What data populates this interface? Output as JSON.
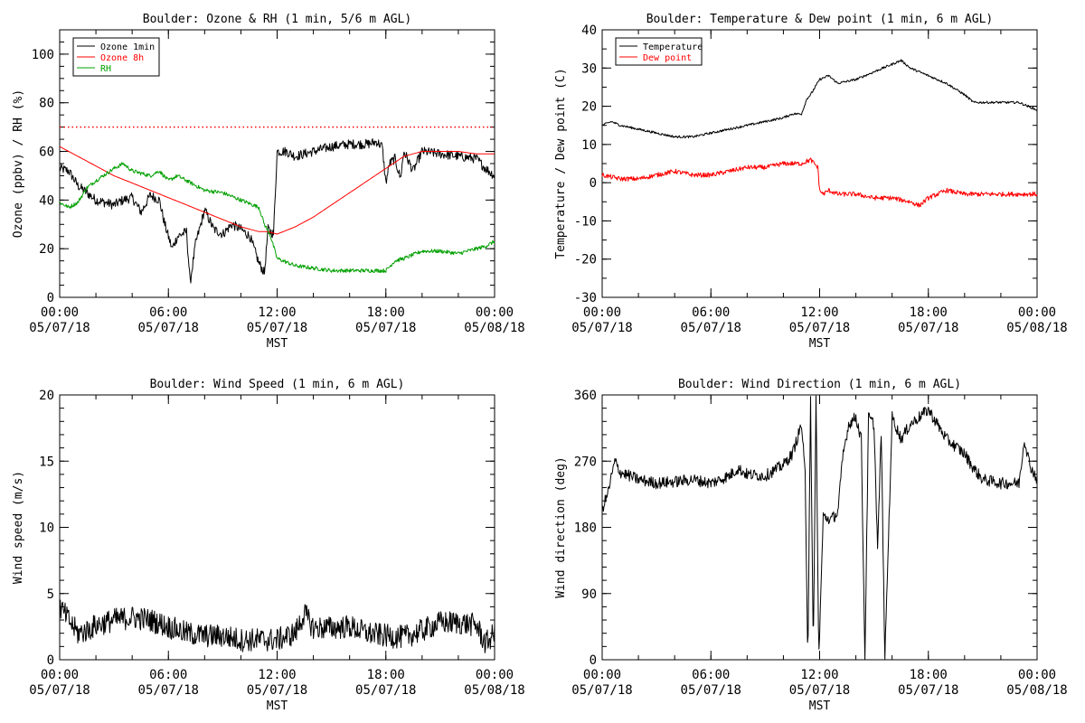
{
  "page": {
    "background": "#ffffff"
  },
  "chart_data": [
    {
      "id": "ozone",
      "type": "line",
      "title": "Boulder: Ozone & RH (1 min, 5/6 m AGL)",
      "ylabel": "Ozone (ppbv) / RH (%)",
      "xlabel": "MST",
      "ylim": [
        0,
        110
      ],
      "yticks": [
        0,
        20,
        40,
        60,
        80,
        100
      ],
      "yminor": 5,
      "xlim": [
        0,
        24
      ],
      "xticks": [
        0,
        6,
        12,
        18,
        24
      ],
      "xminor": 2,
      "xticklabels": [
        [
          "00:00",
          "05/07/18"
        ],
        [
          "06:00",
          "05/07/18"
        ],
        [
          "12:00",
          "05/07/18"
        ],
        [
          "18:00",
          "05/07/18"
        ],
        [
          "00:00",
          "05/08/18"
        ]
      ],
      "legend_position": "top-left",
      "reference_line": {
        "y": 70,
        "color": "#ff0000",
        "style": "dotted"
      },
      "series": [
        {
          "name": "Ozone 1min",
          "color": "#000000",
          "noise": 2.0,
          "x": [
            0,
            0.5,
            1,
            2,
            3,
            3.5,
            4,
            4.5,
            5,
            5.5,
            5.8,
            6.2,
            6.5,
            7,
            7.2,
            7.5,
            8,
            8.5,
            9,
            9.5,
            10,
            10.5,
            11,
            11.3,
            11.5,
            11.8,
            12,
            12.5,
            13,
            14,
            15,
            16,
            17,
            17.5,
            17.8,
            18,
            18.2,
            18.5,
            18.8,
            19,
            19.5,
            20,
            21,
            22,
            23,
            23.5,
            24
          ],
          "y": [
            53,
            52,
            46,
            40,
            38,
            40,
            41,
            35,
            42,
            40,
            30,
            20,
            25,
            27,
            6,
            22,
            36,
            28,
            26,
            30,
            28,
            25,
            14,
            10,
            28,
            26,
            60,
            60,
            58,
            60,
            62,
            63,
            63,
            64,
            62,
            47,
            55,
            57,
            49,
            60,
            52,
            60,
            59,
            58,
            57,
            53,
            50
          ]
        },
        {
          "name": "Ozone 8h",
          "color": "#ff0000",
          "noise": 0,
          "x": [
            0,
            1,
            2,
            3,
            4,
            5,
            6,
            7,
            8,
            9,
            10,
            11,
            11.5,
            12,
            13,
            14,
            15,
            16,
            17,
            18,
            19,
            20,
            21,
            22,
            23,
            24
          ],
          "y": [
            62,
            58,
            54,
            50,
            47,
            44,
            41,
            38,
            35,
            32,
            29,
            27,
            27,
            26,
            29,
            33,
            38,
            43,
            48,
            53,
            58,
            60,
            60,
            60,
            59,
            59
          ]
        },
        {
          "name": "RH",
          "color": "#00a000",
          "noise": 0.8,
          "x": [
            0,
            0.5,
            1,
            1.5,
            2,
            3,
            3.5,
            4,
            5,
            5.5,
            6,
            6.5,
            7,
            7.5,
            8,
            9,
            10,
            11,
            11.3,
            11.6,
            12,
            13,
            14,
            15,
            16,
            17,
            18,
            18.5,
            19,
            20,
            21,
            22,
            23,
            23.5,
            24
          ],
          "y": [
            39,
            37,
            39,
            45,
            48,
            53,
            55,
            52,
            50,
            52,
            48,
            50,
            48,
            46,
            44,
            43,
            40,
            37,
            30,
            26,
            16,
            13,
            12,
            11,
            11,
            11,
            11,
            15,
            16,
            19,
            19,
            18,
            20,
            21,
            23
          ]
        }
      ]
    },
    {
      "id": "temperature",
      "type": "line",
      "title": "Boulder: Temperature & Dew point (1 min, 6 m AGL)",
      "ylabel": "Temperature / Dew point (C)",
      "xlabel": "MST",
      "ylim": [
        -30,
        40
      ],
      "yticks": [
        -30,
        -20,
        -10,
        0,
        10,
        20,
        30,
        40
      ],
      "yminor": 5,
      "xlim": [
        0,
        24
      ],
      "xticks": [
        0,
        6,
        12,
        18,
        24
      ],
      "xminor": 2,
      "xticklabels": [
        [
          "00:00",
          "05/07/18"
        ],
        [
          "06:00",
          "05/07/18"
        ],
        [
          "12:00",
          "05/07/18"
        ],
        [
          "18:00",
          "05/07/18"
        ],
        [
          "00:00",
          "05/08/18"
        ]
      ],
      "legend_position": "top-left",
      "series": [
        {
          "name": "Temperature",
          "color": "#000000",
          "noise": 0.3,
          "x": [
            0,
            0.5,
            1,
            2,
            3,
            4,
            5,
            6,
            7,
            8,
            9,
            10,
            10.5,
            11,
            11.3,
            11.5,
            12,
            12.5,
            13,
            14,
            15,
            16,
            16.5,
            17,
            17.5,
            18,
            19,
            20,
            20.5,
            21,
            22,
            23,
            24
          ],
          "y": [
            15,
            16,
            15,
            14,
            13,
            12,
            12,
            13,
            14,
            15,
            16,
            17,
            18,
            18,
            22,
            23,
            27,
            28,
            26,
            27,
            29,
            31,
            32,
            30,
            29,
            28,
            26,
            23,
            21,
            21,
            21,
            21,
            19
          ]
        },
        {
          "name": "Dew point",
          "color": "#ff0000",
          "noise": 0.6,
          "x": [
            0,
            1,
            2,
            3,
            4,
            5,
            6,
            7,
            8,
            9,
            10,
            10.5,
            11,
            11.5,
            11.9,
            12,
            12.2,
            12.5,
            13,
            14,
            15,
            16,
            17,
            17.5,
            18,
            18.5,
            19,
            20,
            21,
            22,
            23,
            24
          ],
          "y": [
            2,
            1,
            1,
            2,
            3,
            2,
            2,
            3,
            4,
            4,
            5,
            5,
            5,
            6,
            4,
            -2,
            -3,
            -2,
            -3,
            -3,
            -4,
            -4,
            -5,
            -6,
            -4,
            -3,
            -2,
            -3,
            -3,
            -3,
            -3,
            -3
          ]
        }
      ]
    },
    {
      "id": "wind_speed",
      "type": "line",
      "title": "Boulder: Wind Speed (1 min, 6 m AGL)",
      "ylabel": "Wind speed (m/s)",
      "xlabel": "MST",
      "ylim": [
        0,
        20
      ],
      "yticks": [
        0,
        5,
        10,
        15,
        20
      ],
      "yminor": 1,
      "xlim": [
        0,
        24
      ],
      "xticks": [
        0,
        6,
        12,
        18,
        24
      ],
      "xminor": 2,
      "xticklabels": [
        [
          "00:00",
          "05/07/18"
        ],
        [
          "06:00",
          "05/07/18"
        ],
        [
          "12:00",
          "05/07/18"
        ],
        [
          "18:00",
          "05/07/18"
        ],
        [
          "00:00",
          "05/08/18"
        ]
      ],
      "series": [
        {
          "name": "",
          "color": "#000000",
          "noise": 0.9,
          "x": [
            0,
            0.5,
            1,
            1.5,
            2,
            3,
            4,
            5,
            6,
            7,
            8,
            9,
            10,
            11,
            12,
            13,
            13.5,
            14,
            15,
            16,
            17,
            18,
            19,
            20,
            21,
            22,
            23,
            23.5,
            24
          ],
          "y": [
            4,
            3,
            2,
            2.2,
            2.6,
            3,
            3.2,
            3,
            2.5,
            2,
            1.8,
            1.8,
            1.5,
            1.5,
            1.5,
            2.0,
            3.5,
            2.4,
            2.4,
            2.5,
            2.0,
            1.8,
            1.7,
            2.2,
            2.8,
            2.8,
            2.6,
            1.2,
            2.0
          ]
        }
      ]
    },
    {
      "id": "wind_direction",
      "type": "line",
      "title": "Boulder: Wind Direction (1 min, 6 m AGL)",
      "ylabel": "Wind direction (deg)",
      "xlabel": "MST",
      "ylim": [
        0,
        360
      ],
      "yticks": [
        0,
        90,
        180,
        270,
        360
      ],
      "yminor": 18,
      "xlim": [
        0,
        24
      ],
      "xticks": [
        0,
        6,
        12,
        18,
        24
      ],
      "xminor": 2,
      "xticklabels": [
        [
          "00:00",
          "05/07/18"
        ],
        [
          "06:00",
          "05/07/18"
        ],
        [
          "12:00",
          "05/07/18"
        ],
        [
          "18:00",
          "05/07/18"
        ],
        [
          "00:00",
          "05/08/18"
        ]
      ],
      "series": [
        {
          "name": "",
          "color": "#000000",
          "noise": 8,
          "x": [
            0,
            0.3,
            0.7,
            1,
            1.5,
            2,
            3,
            4,
            5,
            6,
            7,
            7.5,
            8,
            9,
            10,
            10.5,
            11,
            11.2,
            11.35,
            11.5,
            11.65,
            11.8,
            11.95,
            12.2,
            12.6,
            13,
            13.3,
            13.6,
            14,
            14.3,
            14.5,
            14.7,
            15,
            15.2,
            15.4,
            15.6,
            16,
            16.5,
            17,
            17.5,
            18,
            18.5,
            19,
            20,
            20.5,
            21,
            22,
            23,
            23.3,
            23.6,
            24
          ],
          "y": [
            205,
            225,
            270,
            255,
            250,
            245,
            240,
            242,
            245,
            240,
            250,
            260,
            252,
            250,
            265,
            280,
            320,
            250,
            0,
            360,
            0,
            360,
            0,
            195,
            190,
            200,
            280,
            320,
            330,
            300,
            0,
            330,
            320,
            150,
            310,
            0,
            330,
            300,
            320,
            330,
            340,
            320,
            300,
            280,
            260,
            245,
            240,
            240,
            300,
            265,
            245
          ]
        }
      ]
    }
  ]
}
